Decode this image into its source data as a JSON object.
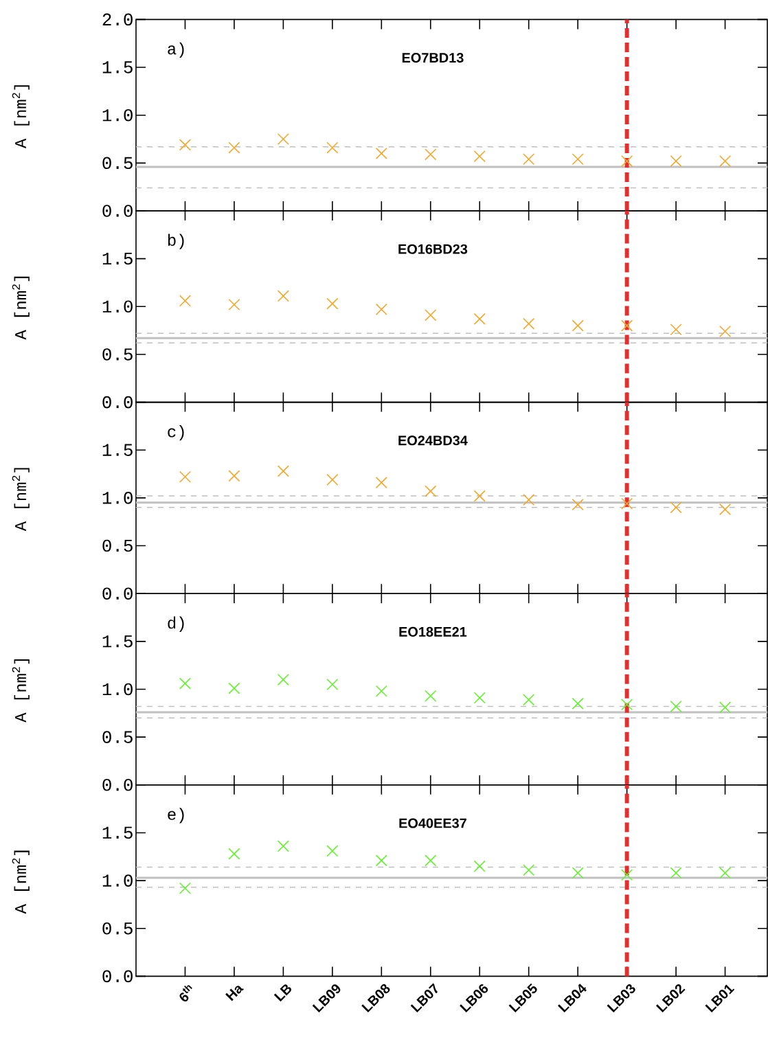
{
  "chart_data": [
    {
      "type": "scatter",
      "title": "EO7BD13",
      "annotations": [
        "a)"
      ],
      "ylabel": "A [nm$^{2}$]",
      "marker": "cross",
      "tick_labels": "y",
      "categories": [
        "6$^{th}$",
        "Ha",
        "LB",
        "LB09",
        "LB08",
        "LB07",
        "LB06",
        "LB05",
        "LB04",
        "LB03",
        "LB02",
        "LB01"
      ],
      "series": [
        {
          "color": "#f0a830",
          "values": [
            0.69,
            0.66,
            0.75,
            0.66,
            0.6,
            0.59,
            0.57,
            0.54,
            0.54,
            0.52,
            0.52,
            0.52
          ]
        }
      ],
      "ylim": [
        0,
        2
      ],
      "yticks": [
        {
          "value": 0,
          "label": "0.0"
        },
        {
          "value": 0.5,
          "label": "0.5"
        },
        {
          "value": 1.0,
          "label": "1.0"
        },
        {
          "value": 1.5,
          "label": "1.5"
        },
        {
          "value": 2.0,
          "label": "2.0"
        }
      ],
      "ref_lines": [
        {
          "axis": "y",
          "value": 0.46,
          "color": "#c0c0c0",
          "line_style": "solid"
        },
        {
          "axis": "y",
          "value": 0.67,
          "color": "#c0c0c0",
          "line_style": "dashed"
        },
        {
          "axis": "y",
          "value": 0.24,
          "color": "#c0c0c0",
          "line_style": "dashed"
        },
        {
          "axis": "x",
          "value": "LB03",
          "color": "#e03030",
          "line_style": "dashed"
        }
      ]
    },
    {
      "type": "scatter",
      "title": "EO16BD23",
      "annotations": [
        "b)"
      ],
      "ylabel": "A [nm$^{2}$]",
      "marker": "cross",
      "tick_labels": "y",
      "categories": [
        "6$^{th}$",
        "Ha",
        "LB",
        "LB09",
        "LB08",
        "LB07",
        "LB06",
        "LB05",
        "LB04",
        "LB03",
        "LB02",
        "LB01"
      ],
      "series": [
        {
          "color": "#f0a830",
          "values": [
            1.06,
            1.02,
            1.11,
            1.03,
            0.97,
            0.91,
            0.87,
            0.82,
            0.8,
            0.8,
            0.76,
            0.74
          ]
        }
      ],
      "ylim": [
        0,
        2
      ],
      "yticks": [
        {
          "value": 0,
          "label": "0.0"
        },
        {
          "value": 0.5,
          "label": "0.5"
        },
        {
          "value": 1.0,
          "label": "1.0"
        },
        {
          "value": 1.5,
          "label": "1.5"
        }
      ],
      "ref_lines": [
        {
          "axis": "y",
          "value": 0.67,
          "color": "#c0c0c0",
          "line_style": "solid"
        },
        {
          "axis": "y",
          "value": 0.72,
          "color": "#c0c0c0",
          "line_style": "dashed"
        },
        {
          "axis": "y",
          "value": 0.62,
          "color": "#c0c0c0",
          "line_style": "dashed"
        },
        {
          "axis": "x",
          "value": "LB03",
          "color": "#e03030",
          "line_style": "dashed"
        }
      ]
    },
    {
      "type": "scatter",
      "title": "EO24BD34",
      "annotations": [
        "c)"
      ],
      "ylabel": "A [nm$^{2}$]",
      "marker": "cross",
      "tick_labels": "y",
      "categories": [
        "6$^{th}$",
        "Ha",
        "LB",
        "LB09",
        "LB08",
        "LB07",
        "LB06",
        "LB05",
        "LB04",
        "LB03",
        "LB02",
        "LB01"
      ],
      "series": [
        {
          "color": "#f0a830",
          "values": [
            1.22,
            1.23,
            1.28,
            1.19,
            1.16,
            1.07,
            1.02,
            0.98,
            0.93,
            0.94,
            0.9,
            0.88
          ]
        }
      ],
      "ylim": [
        0,
        2
      ],
      "yticks": [
        {
          "value": 0,
          "label": "0.0"
        },
        {
          "value": 0.5,
          "label": "0.5"
        },
        {
          "value": 1.0,
          "label": "1.0"
        },
        {
          "value": 1.5,
          "label": "1.5"
        }
      ],
      "ref_lines": [
        {
          "axis": "y",
          "value": 0.95,
          "color": "#c0c0c0",
          "line_style": "solid"
        },
        {
          "axis": "y",
          "value": 1.02,
          "color": "#c0c0c0",
          "line_style": "dashed"
        },
        {
          "axis": "y",
          "value": 0.9,
          "color": "#c0c0c0",
          "line_style": "dashed"
        },
        {
          "axis": "x",
          "value": "LB03",
          "color": "#e03030",
          "line_style": "dashed"
        }
      ]
    },
    {
      "type": "scatter",
      "title": "EO18EE21",
      "annotations": [
        "d)"
      ],
      "ylabel": "A [nm$^{2}$]",
      "marker": "cross",
      "tick_labels": "y",
      "categories": [
        "6$^{th}$",
        "Ha",
        "LB",
        "LB09",
        "LB08",
        "LB07",
        "LB06",
        "LB05",
        "LB04",
        "LB03",
        "LB02",
        "LB01"
      ],
      "series": [
        {
          "color": "#66ee33",
          "values": [
            1.06,
            1.01,
            1.1,
            1.05,
            0.98,
            0.93,
            0.91,
            0.89,
            0.85,
            0.84,
            0.82,
            0.81
          ]
        }
      ],
      "ylim": [
        0,
        2
      ],
      "yticks": [
        {
          "value": 0,
          "label": "0.0"
        },
        {
          "value": 0.5,
          "label": "0.5"
        },
        {
          "value": 1.0,
          "label": "1.0"
        },
        {
          "value": 1.5,
          "label": "1.5"
        }
      ],
      "ref_lines": [
        {
          "axis": "y",
          "value": 0.76,
          "color": "#c0c0c0",
          "line_style": "solid"
        },
        {
          "axis": "y",
          "value": 0.82,
          "color": "#c0c0c0",
          "line_style": "dashed"
        },
        {
          "axis": "y",
          "value": 0.7,
          "color": "#c0c0c0",
          "line_style": "dashed"
        },
        {
          "axis": "x",
          "value": "LB03",
          "color": "#e03030",
          "line_style": "dashed"
        }
      ]
    },
    {
      "type": "scatter",
      "title": "EO40EE37",
      "annotations": [
        "e)"
      ],
      "ylabel": "A [nm$^{2}$]",
      "marker": "cross",
      "categories": [
        "6$^{th}$",
        "Ha",
        "LB",
        "LB09",
        "LB08",
        "LB07",
        "LB06",
        "LB05",
        "LB04",
        "LB03",
        "LB02",
        "LB01"
      ],
      "series": [
        {
          "color": "#66ee33",
          "values": [
            0.92,
            1.28,
            1.36,
            1.31,
            1.21,
            1.21,
            1.15,
            1.11,
            1.08,
            1.06,
            1.08,
            1.08
          ]
        }
      ],
      "ylim": [
        0,
        2
      ],
      "yticks": [
        {
          "value": 0,
          "label": "0.0"
        },
        {
          "value": 0.5,
          "label": "0.5"
        },
        {
          "value": 1.0,
          "label": "1.0"
        },
        {
          "value": 1.5,
          "label": "1.5"
        }
      ],
      "ref_lines": [
        {
          "axis": "y",
          "value": 1.03,
          "color": "#c0c0c0",
          "line_style": "solid"
        },
        {
          "axis": "y",
          "value": 1.14,
          "color": "#c0c0c0",
          "line_style": "dashed"
        },
        {
          "axis": "y",
          "value": 0.93,
          "color": "#c0c0c0",
          "line_style": "dashed"
        },
        {
          "axis": "x",
          "value": "LB03",
          "color": "#e03030",
          "line_style": "dashed"
        }
      ]
    }
  ]
}
